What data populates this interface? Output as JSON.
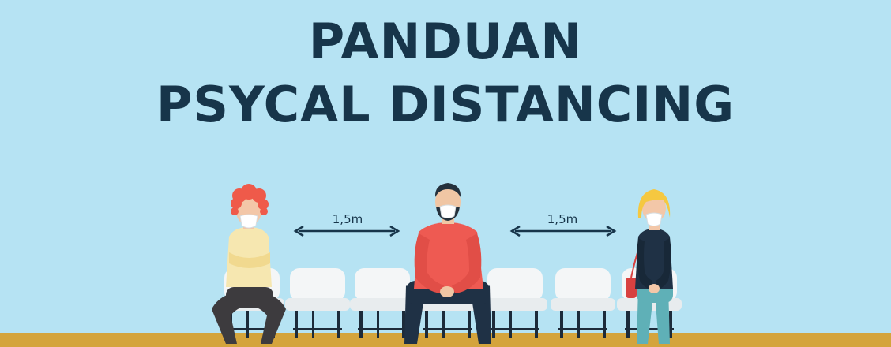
{
  "title": {
    "line1": "PANDUAN",
    "line2": "PSYCAL DISTANCING"
  },
  "distance_markers": [
    {
      "label": "1,5m"
    },
    {
      "label": "1,5m"
    }
  ],
  "colors": {
    "background": "#b6e3f3",
    "title": "#17354a",
    "floor": "#d4a43c",
    "chair": "#f4f6f7",
    "chair_frame": "#1d2b3a"
  }
}
